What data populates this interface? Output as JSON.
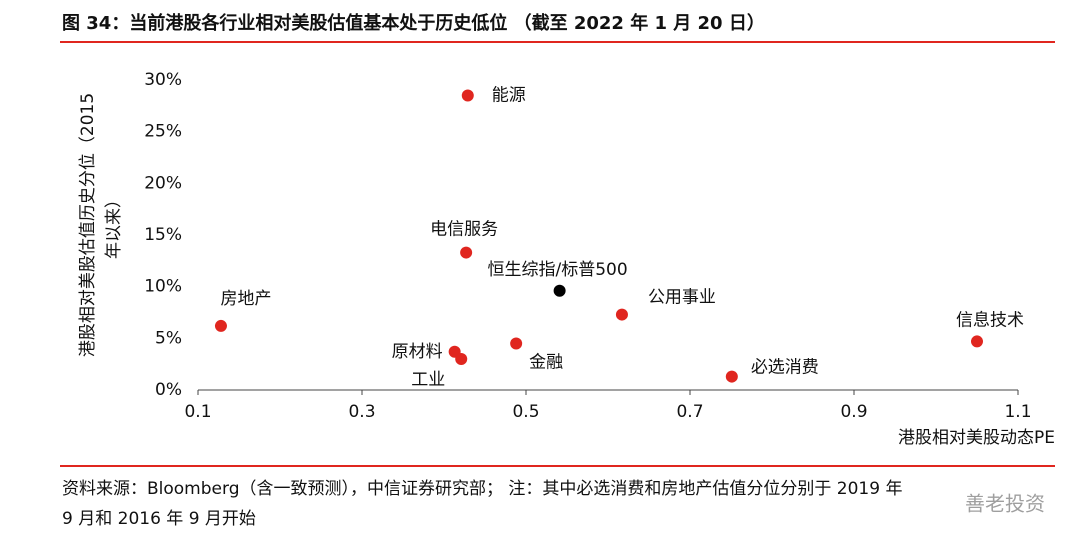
{
  "chart_data": {
    "type": "scatter",
    "title": "图 34：当前港股各行业相对美股估值基本处于历史低位 （截至 2022 年 1 月 20 日）",
    "xlabel": "港股相对美股动态PE",
    "ylabel": [
      "港股相对美股估值历史分位（2015",
      "年以来）"
    ],
    "points": [
      {
        "label": "能源",
        "x": 0.429,
        "y": 28.5,
        "color": "#e0261f"
      },
      {
        "label": "电信服务",
        "x": 0.427,
        "y": 13.3,
        "color": "#e0261f"
      },
      {
        "label": "恒生综指/标普500",
        "x": 0.541,
        "y": 9.6,
        "color": "#000000"
      },
      {
        "label": "公用事业",
        "x": 0.617,
        "y": 7.3,
        "color": "#e0261f"
      },
      {
        "label": "房地产",
        "x": 0.128,
        "y": 6.2,
        "color": "#e0261f"
      },
      {
        "label": "原材料",
        "x": 0.413,
        "y": 3.7,
        "color": "#e0261f"
      },
      {
        "label": "工业",
        "x": 0.421,
        "y": 3.0,
        "color": "#e0261f"
      },
      {
        "label": "金融",
        "x": 0.488,
        "y": 4.5,
        "color": "#e0261f"
      },
      {
        "label": "必选消费",
        "x": 0.751,
        "y": 1.3,
        "color": "#e0261f"
      },
      {
        "label": "信息技术",
        "x": 1.05,
        "y": 4.7,
        "color": "#e0261f"
      }
    ],
    "xlim": [
      0.1,
      1.1
    ],
    "xticks": [
      0.1,
      0.3,
      0.5,
      0.7,
      0.9,
      1.1
    ],
    "ylim": [
      0,
      30
    ],
    "yticks": [
      {
        "value": 0,
        "label": "0%"
      },
      {
        "value": 5,
        "label": "5%"
      },
      {
        "value": 10,
        "label": "10%"
      },
      {
        "value": 15,
        "label": "15%"
      },
      {
        "value": 20,
        "label": "20%"
      },
      {
        "value": 25,
        "label": "25%"
      },
      {
        "value": 30,
        "label": "30%"
      }
    ],
    "footnote": [
      "资料来源：Bloomberg（含一致预测），中信证券研究部； 注：其中必选消费和房地产估值分位分别于 2019 年",
      "9 月和 2016 年 9 月开始"
    ],
    "watermark": "善老投资"
  }
}
